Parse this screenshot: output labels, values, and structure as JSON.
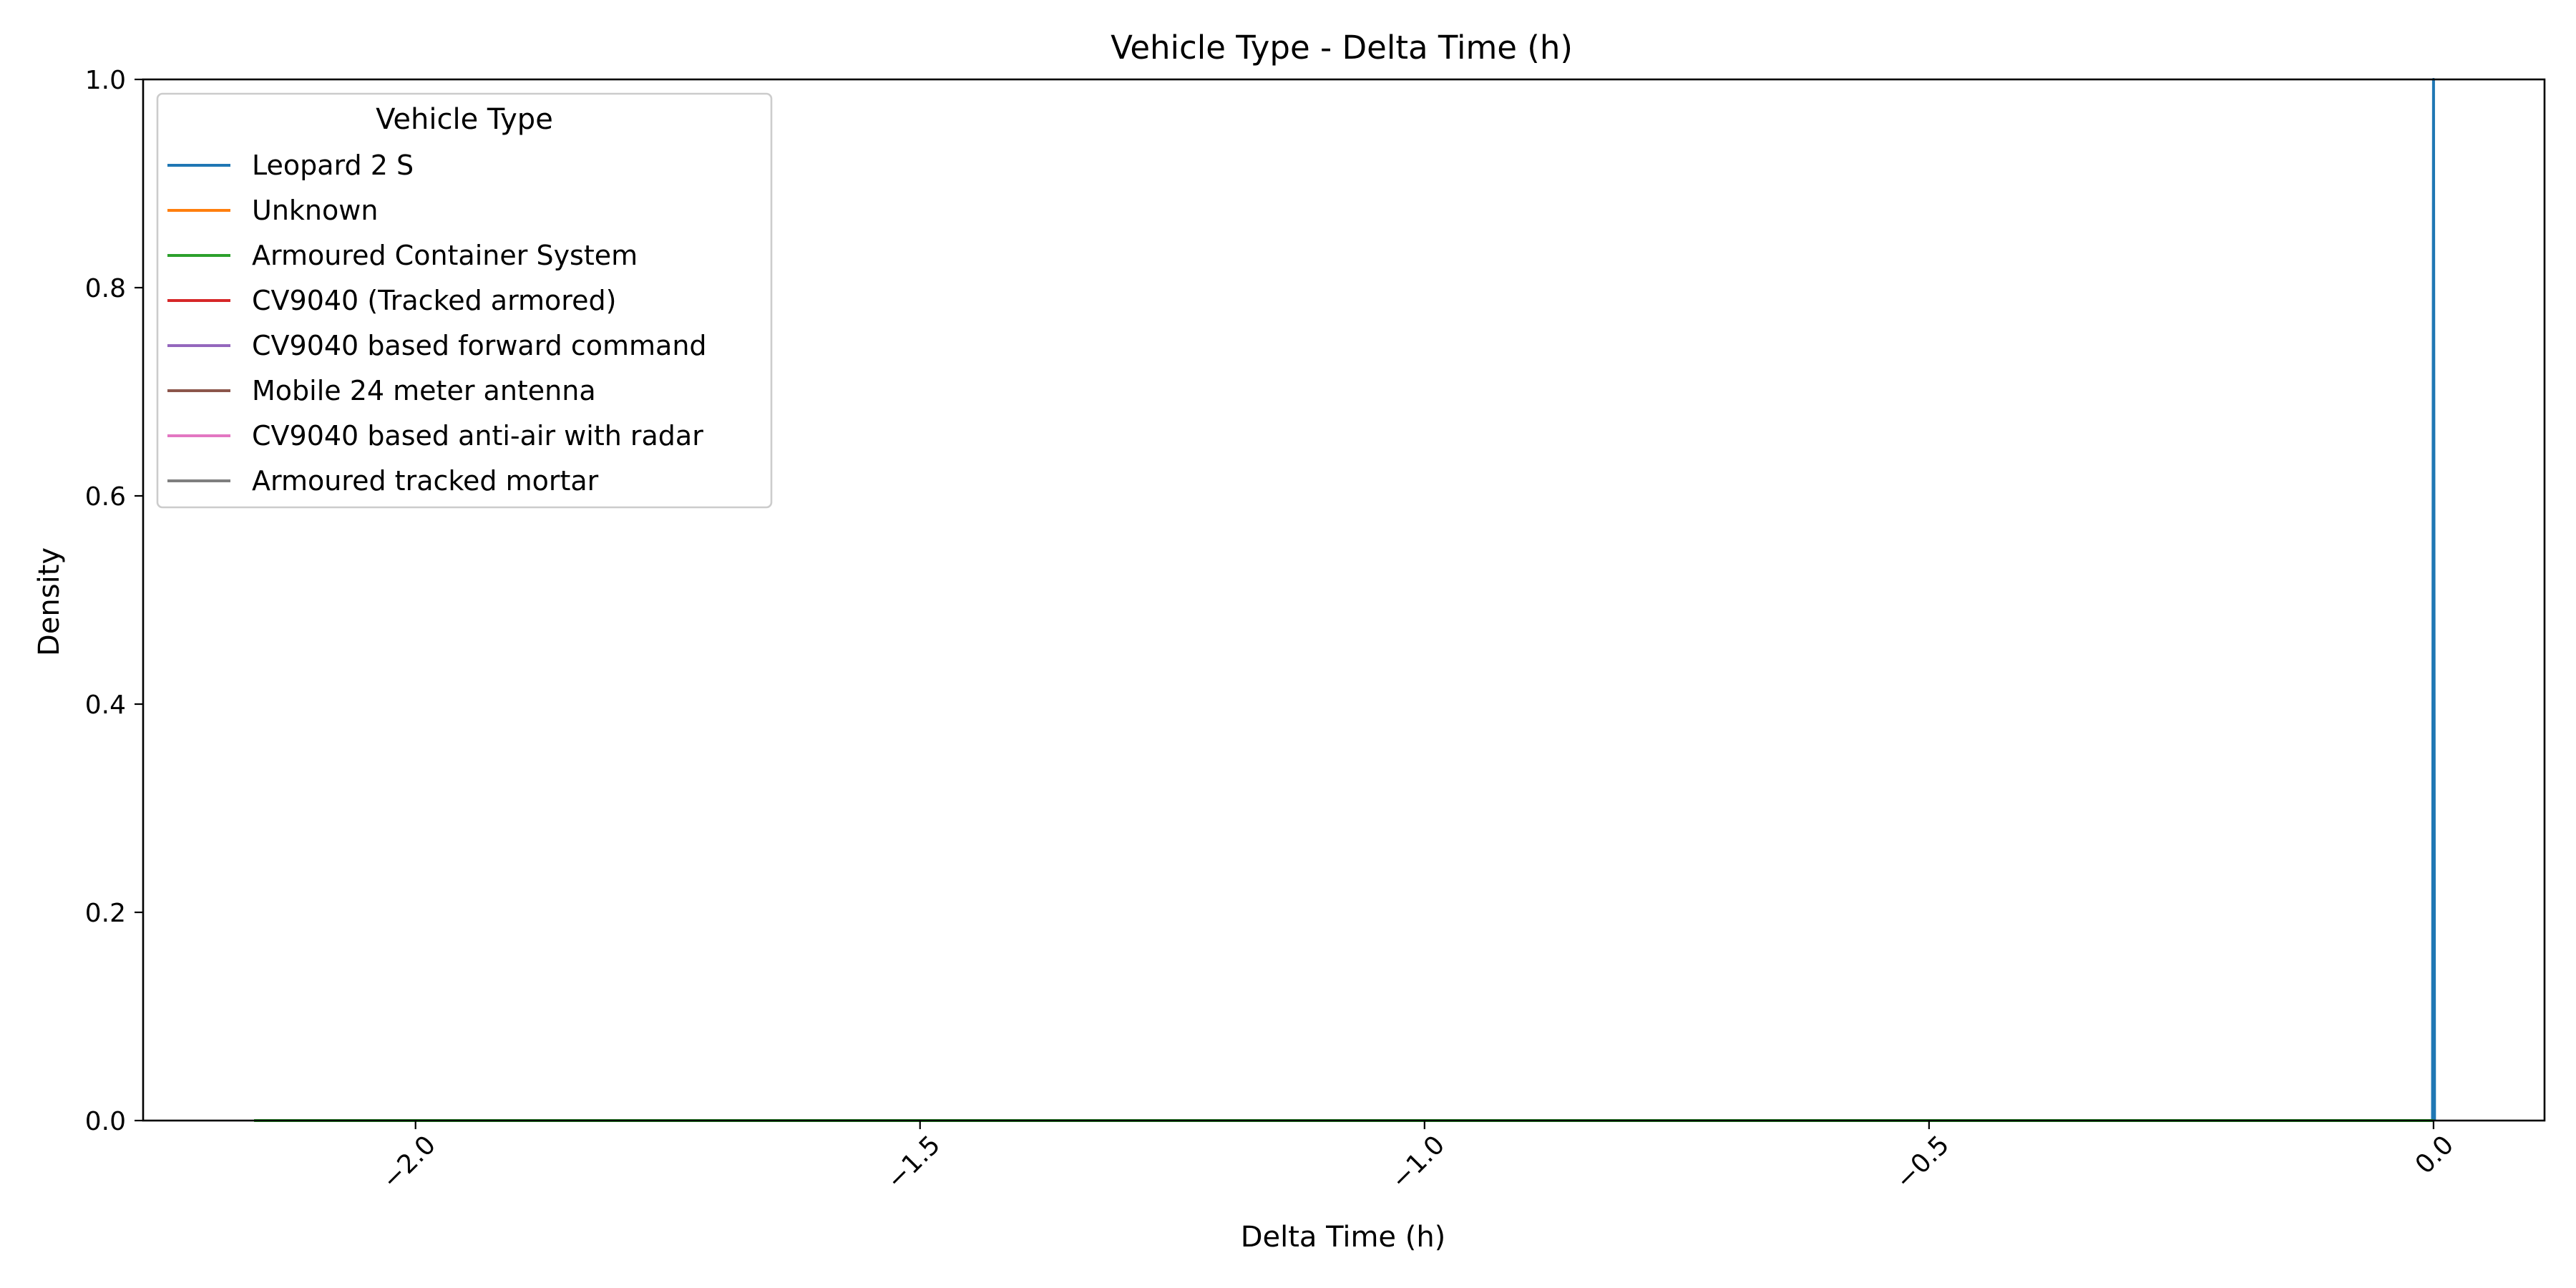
{
  "chart_data": {
    "type": "line",
    "title": "Vehicle Type - Delta Time (h)",
    "xlabel": "Delta Time (h)",
    "ylabel": "Density",
    "xlim": [
      -2.27,
      0.11
    ],
    "ylim": [
      0.0,
      1.0
    ],
    "x_ticks": [
      -2.0,
      -1.5,
      -1.0,
      -0.5,
      0.0
    ],
    "x_tick_labels": [
      "−2.0",
      "−1.5",
      "−1.0",
      "−0.5",
      "0.0"
    ],
    "y_ticks": [
      0.0,
      0.2,
      0.4,
      0.6,
      0.8,
      1.0
    ],
    "y_tick_labels": [
      "0.0",
      "0.2",
      "0.4",
      "0.6",
      "0.8",
      "1.0"
    ],
    "grid": false,
    "legend": {
      "title": "Vehicle Type",
      "placement": "upper-left"
    },
    "series": [
      {
        "name": "Leopard 2 S",
        "color": "#1f77b4",
        "points": [
          [
            -2.16,
            0.0
          ],
          [
            -0.001,
            0.0
          ],
          [
            0.0,
            1.0
          ],
          [
            0.001,
            0.0
          ]
        ]
      },
      {
        "name": "Unknown",
        "color": "#ff7f0e",
        "points": [
          [
            -2.16,
            0.0
          ],
          [
            0.0,
            0.0
          ]
        ]
      },
      {
        "name": "Armoured Container System",
        "color": "#2ca02c",
        "points": [
          [
            -2.16,
            0.0
          ],
          [
            0.0,
            0.0
          ]
        ]
      },
      {
        "name": "CV9040 (Tracked armored)",
        "color": "#d62728",
        "points": []
      },
      {
        "name": "CV9040 based forward command",
        "color": "#9467bd",
        "points": []
      },
      {
        "name": "Mobile 24 meter antenna",
        "color": "#8c564b",
        "points": []
      },
      {
        "name": "CV9040 based anti-air with radar",
        "color": "#e377c2",
        "points": []
      },
      {
        "name": "Armoured tracked mortar",
        "color": "#7f7f7f",
        "points": []
      }
    ]
  }
}
